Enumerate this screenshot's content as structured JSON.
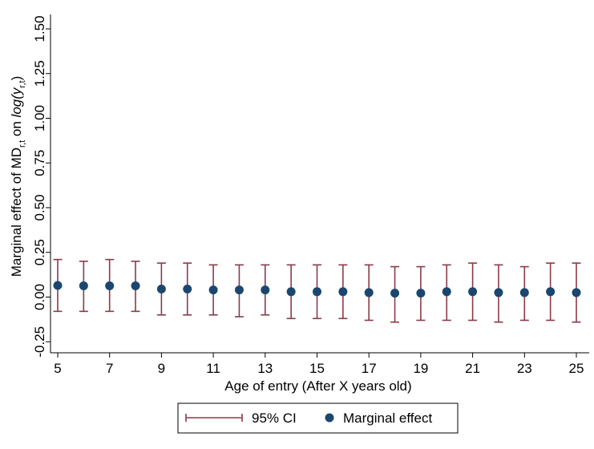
{
  "chart_data": {
    "type": "scatter",
    "title": "",
    "xlabel": "Age of entry (After X years old)",
    "ylabel": {
      "prefix": "Marginal effect of  MD",
      "prefix_sub": "r,t",
      "middle": " on ",
      "func": "log(y",
      "func_sub": "r,t",
      "suffix": ")"
    },
    "x_ticks": [
      5,
      7,
      9,
      11,
      13,
      15,
      17,
      19,
      21,
      23,
      25
    ],
    "y_ticks": [
      -0.25,
      0,
      0.25,
      0.5,
      0.75,
      1.0,
      1.25,
      1.5
    ],
    "y_tick_labels": [
      "-0.25",
      "0.00",
      "0.25",
      "0.50",
      "0.75",
      "1.00",
      "1.25",
      "1.50"
    ],
    "xlim": [
      5,
      25
    ],
    "ylim": [
      -0.3,
      1.5
    ],
    "grid": false,
    "legend_position": "bottom",
    "series": [
      {
        "name": "95% CI",
        "kind": "errorbar",
        "color": "#8b3a4a",
        "x": [
          5,
          6,
          7,
          8,
          9,
          10,
          11,
          12,
          13,
          14,
          15,
          16,
          17,
          18,
          19,
          20,
          21,
          22,
          23,
          24,
          25
        ],
        "lower": [
          -0.08,
          -0.08,
          -0.08,
          -0.08,
          -0.1,
          -0.1,
          -0.1,
          -0.11,
          -0.1,
          -0.12,
          -0.12,
          -0.12,
          -0.13,
          -0.14,
          -0.13,
          -0.13,
          -0.13,
          -0.14,
          -0.13,
          -0.13,
          -0.14
        ],
        "upper": [
          0.21,
          0.2,
          0.21,
          0.2,
          0.19,
          0.19,
          0.18,
          0.18,
          0.18,
          0.18,
          0.18,
          0.18,
          0.18,
          0.17,
          0.17,
          0.18,
          0.19,
          0.18,
          0.17,
          0.19,
          0.19
        ]
      },
      {
        "name": "Marginal effect",
        "kind": "point",
        "color": "#1a476f",
        "x": [
          5,
          6,
          7,
          8,
          9,
          10,
          11,
          12,
          13,
          14,
          15,
          16,
          17,
          18,
          19,
          20,
          21,
          22,
          23,
          24,
          25
        ],
        "values": [
          0.065,
          0.063,
          0.063,
          0.063,
          0.045,
          0.045,
          0.04,
          0.04,
          0.04,
          0.03,
          0.03,
          0.03,
          0.025,
          0.022,
          0.022,
          0.03,
          0.03,
          0.025,
          0.025,
          0.03,
          0.025
        ]
      }
    ]
  }
}
